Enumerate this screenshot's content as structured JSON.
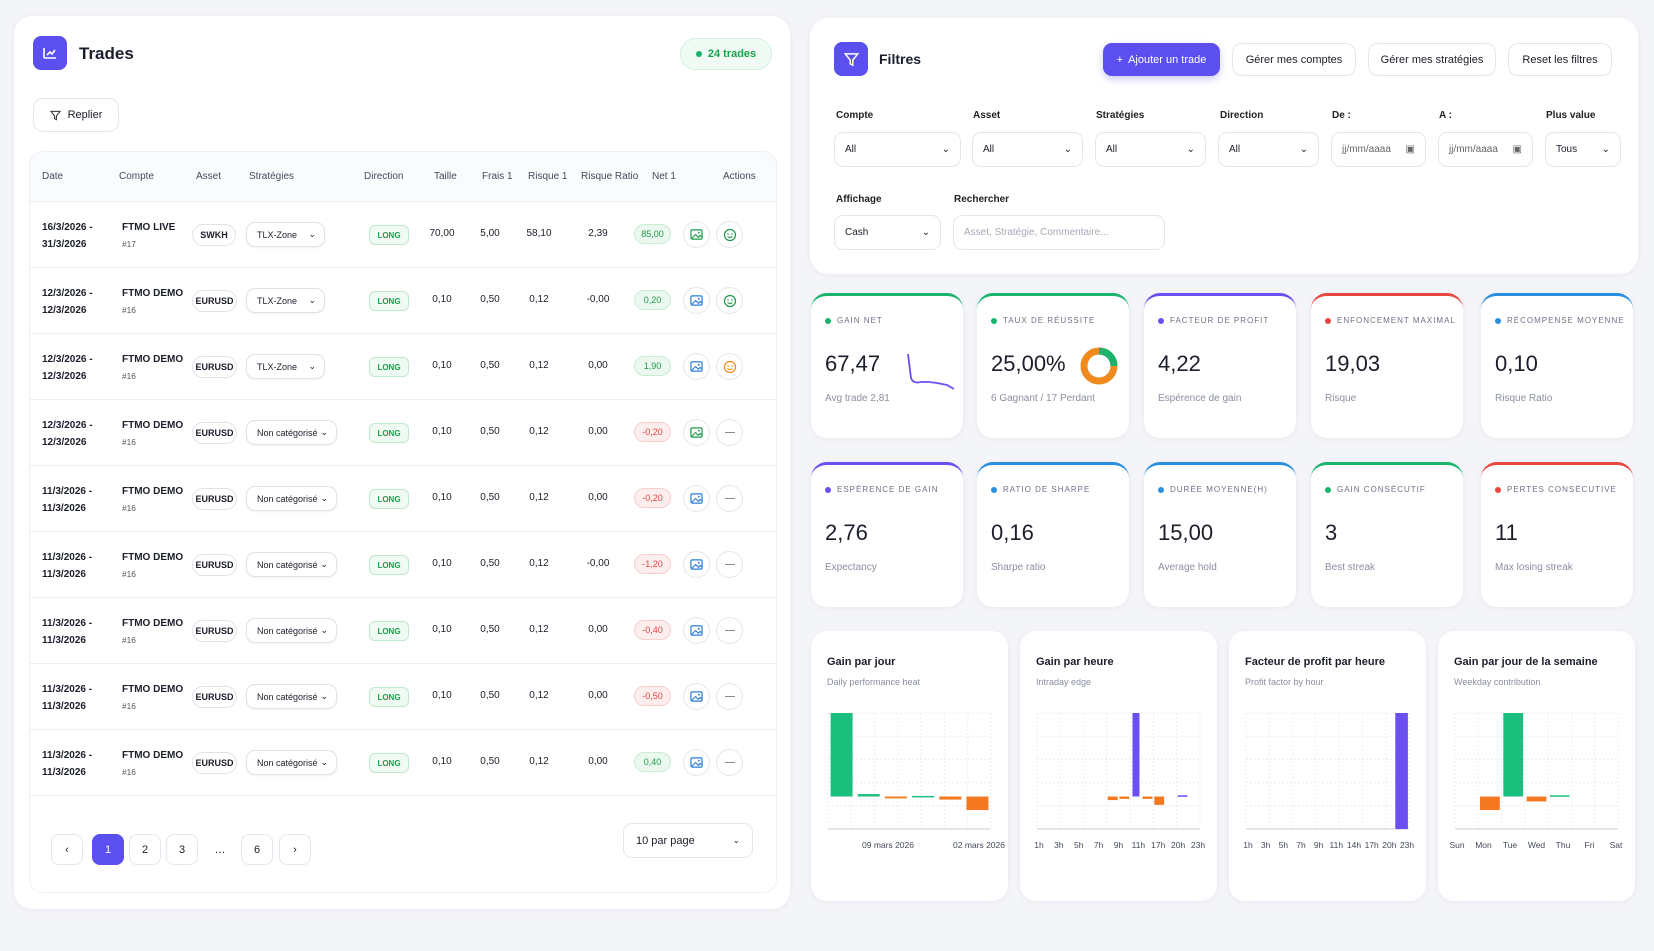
{
  "trades_panel": {
    "title": "Trades",
    "count_badge": "24 trades",
    "collapse_label": "Replier",
    "columns": [
      "Date",
      "Compte",
      "Asset",
      "Stratégies",
      "Direction",
      "Taille",
      "Frais 1",
      "Risque 1",
      "Risque Ratio",
      "Net 1",
      "Actions"
    ],
    "rows": [
      {
        "date1": "16/3/2026 -",
        "date2": "31/3/2026",
        "account": "FTMO LIVE",
        "id": "#17",
        "asset": "SWKH",
        "strategy": "TLX-Zone",
        "direction": "LONG",
        "size": "70,00",
        "fees": "5,00",
        "risk": "58,10",
        "ratio": "2,39",
        "net": "85,00",
        "net_sign": "pos",
        "mood": "smile"
      },
      {
        "date1": "12/3/2026 -",
        "date2": "12/3/2026",
        "account": "FTMO DEMO",
        "id": "#16",
        "asset": "EURUSD",
        "strategy": "TLX-Zone",
        "direction": "LONG",
        "size": "0,10",
        "fees": "0,50",
        "risk": "0,12",
        "ratio": "-0,00",
        "net": "0,20",
        "net_sign": "pos",
        "mood": "smile"
      },
      {
        "date1": "12/3/2026 -",
        "date2": "12/3/2026",
        "account": "FTMO DEMO",
        "id": "#16",
        "asset": "EURUSD",
        "strategy": "TLX-Zone",
        "direction": "LONG",
        "size": "0,10",
        "fees": "0,50",
        "risk": "0,12",
        "ratio": "0,00",
        "net": "1,90",
        "net_sign": "pos",
        "mood": "orange"
      },
      {
        "date1": "12/3/2026 -",
        "date2": "12/3/2026",
        "account": "FTMO DEMO",
        "id": "#16",
        "asset": "EURUSD",
        "strategy": "Non catégorisé",
        "direction": "LONG",
        "size": "0,10",
        "fees": "0,50",
        "risk": "0,12",
        "ratio": "0,00",
        "net": "-0,20",
        "net_sign": "neg",
        "mood": "none"
      },
      {
        "date1": "11/3/2026 -",
        "date2": "11/3/2026",
        "account": "FTMO DEMO",
        "id": "#16",
        "asset": "EURUSD",
        "strategy": "Non catégorisé",
        "direction": "LONG",
        "size": "0,10",
        "fees": "0,50",
        "risk": "0,12",
        "ratio": "0,00",
        "net": "-0,20",
        "net_sign": "neg",
        "mood": "none"
      },
      {
        "date1": "11/3/2026 -",
        "date2": "11/3/2026",
        "account": "FTMO DEMO",
        "id": "#16",
        "asset": "EURUSD",
        "strategy": "Non catégorisé",
        "direction": "LONG",
        "size": "0,10",
        "fees": "0,50",
        "risk": "0,12",
        "ratio": "-0,00",
        "net": "-1,20",
        "net_sign": "neg",
        "mood": "none"
      },
      {
        "date1": "11/3/2026 -",
        "date2": "11/3/2026",
        "account": "FTMO DEMO",
        "id": "#16",
        "asset": "EURUSD",
        "strategy": "Non catégorisé",
        "direction": "LONG",
        "size": "0,10",
        "fees": "0,50",
        "risk": "0,12",
        "ratio": "0,00",
        "net": "-0,40",
        "net_sign": "neg",
        "mood": "none"
      },
      {
        "date1": "11/3/2026 -",
        "date2": "11/3/2026",
        "account": "FTMO DEMO",
        "id": "#16",
        "asset": "EURUSD",
        "strategy": "Non catégorisé",
        "direction": "LONG",
        "size": "0,10",
        "fees": "0,50",
        "risk": "0,12",
        "ratio": "0,00",
        "net": "-0,50",
        "net_sign": "neg",
        "mood": "none"
      },
      {
        "date1": "11/3/2026 -",
        "date2": "11/3/2026",
        "account": "FTMO DEMO",
        "id": "#16",
        "asset": "EURUSD",
        "strategy": "Non catégorisé",
        "direction": "LONG",
        "size": "0,10",
        "fees": "0,50",
        "risk": "0,12",
        "ratio": "0,00",
        "net": "0,40",
        "net_sign": "pos",
        "mood": "none"
      }
    ],
    "pagination": {
      "pages": [
        "1",
        "2",
        "3",
        "…",
        "6"
      ],
      "prev": "‹",
      "next": "›",
      "per_page": "10 par page"
    }
  },
  "filters": {
    "title": "Filtres",
    "add_trade": "Ajouter un trade",
    "manage_accounts": "Gérer mes comptes",
    "manage_strategies": "Gérer mes stratégies",
    "reset": "Reset les filtres",
    "labels": {
      "compte": "Compte",
      "asset": "Asset",
      "strategies": "Stratégies",
      "direction": "Direction",
      "de": "De :",
      "a": "A :",
      "plus_value": "Plus value",
      "affichage": "Affichage",
      "rechercher": "Rechercher"
    },
    "values": {
      "compte": "All",
      "asset": "All",
      "strategies": "All",
      "direction": "All",
      "de": "jj/mm/aaaa",
      "a": "jj/mm/aaaa",
      "plus_value": "Tous",
      "affichage": "Cash"
    },
    "search_placeholder": "Asset, Stratégie, Commentaire..."
  },
  "kpis": [
    {
      "label": "GAIN NET",
      "value": "67,47",
      "sub": "Avg trade 2,81",
      "color": "#19b36b"
    },
    {
      "label": "TAUX DE RÉUSSITE",
      "value": "25,00%",
      "sub": "6 Gagnant / 17 Perdant",
      "color": "#19b36b",
      "win_fraction": 0.25
    },
    {
      "label": "FACTEUR DE PROFIT",
      "value": "4,22",
      "sub": "Espérence de gain",
      "color": "#6b4ff0"
    },
    {
      "label": "ENFONCEMENT MAXIMAL",
      "value": "19,03",
      "sub": "Risque",
      "color": "#e8473f"
    },
    {
      "label": "RÉCOMPENSE MOYENNE",
      "value": "0,10",
      "sub": "Risque Ratio",
      "color": "#2b8fe0"
    },
    {
      "label": "ESPÉRENCE DE GAIN",
      "value": "2,76",
      "sub": "Expectancy",
      "color": "#6b4ff0"
    },
    {
      "label": "RATIO DE SHARPE",
      "value": "0,16",
      "sub": "Sharpe ratio",
      "color": "#2b8fe0"
    },
    {
      "label": "DURÉE MOYENNE(H)",
      "value": "15,00",
      "sub": "Average hold",
      "color": "#2b8fe0"
    },
    {
      "label": "GAIN CONSÉCUTIF",
      "value": "3",
      "sub": "Best streak",
      "color": "#19b36b"
    },
    {
      "label": "PERTES CONSÉCUTIVE",
      "value": "11",
      "sub": "Max losing streak",
      "color": "#e8473f"
    }
  ],
  "chart_data": [
    {
      "type": "bar",
      "title": "Gain par jour",
      "subtitle": "Daily performance heat",
      "x_ticks": [
        "09 mars 2026",
        "02 mars 2026"
      ],
      "values": [
        68,
        2,
        -1.5,
        0.5,
        -2.5,
        -11
      ]
    },
    {
      "type": "bar",
      "title": "Gain par heure",
      "subtitle": "Intraday edge",
      "x_ticks": [
        "1h",
        "3h",
        "5h",
        "7h",
        "9h",
        "11h",
        "17h",
        "20h",
        "23h"
      ],
      "values": [
        0,
        0,
        0,
        0,
        0,
        0,
        -3,
        -2,
        70,
        -2,
        -7,
        0,
        1,
        0
      ]
    },
    {
      "type": "bar",
      "title": "Facteur de profit par heure",
      "subtitle": "Profit factor by hour",
      "x_ticks": [
        "1h",
        "3h",
        "5h",
        "7h",
        "9h",
        "11h",
        "14h",
        "17h",
        "20h",
        "23h"
      ],
      "values": [
        0,
        0,
        0,
        0,
        0,
        0,
        0,
        0,
        0,
        0,
        1
      ]
    },
    {
      "type": "bar",
      "title": "Gain par jour de la semaine",
      "subtitle": "Weekday contribution",
      "x_ticks": [
        "Sun",
        "Mon",
        "Tue",
        "Wed",
        "Thu",
        "Fri",
        "Sat"
      ],
      "values": [
        0,
        -11,
        68,
        -4,
        1,
        0,
        0
      ]
    }
  ]
}
